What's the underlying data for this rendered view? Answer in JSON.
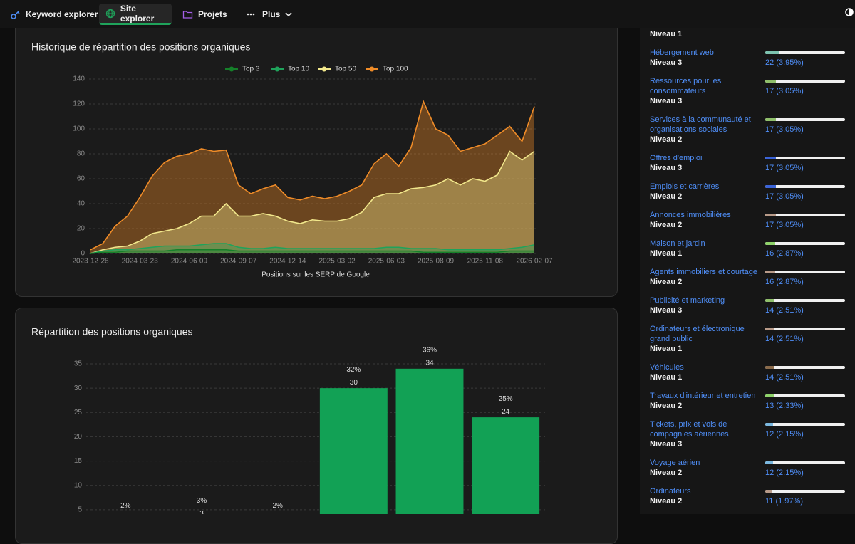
{
  "nav": {
    "items": [
      "Keyword explorer",
      "Site explorer",
      "Projets",
      "Plus"
    ]
  },
  "chart_data": [
    {
      "type": "line",
      "title": "Historique de répartition des positions organiques",
      "x_label": "Positions sur les SERP de Google",
      "categories": [
        "2023-12-28",
        null,
        null,
        null,
        "2024-03-23",
        null,
        null,
        null,
        "2024-06-09",
        null,
        null,
        null,
        "2024-09-07",
        null,
        null,
        null,
        "2024-12-14",
        null,
        null,
        null,
        "2025-03-02",
        null,
        null,
        null,
        "2025-06-03",
        null,
        null,
        null,
        "2025-08-09",
        null,
        null,
        null,
        "2025-11-08",
        null,
        null,
        null,
        "2026-02-07"
      ],
      "series": [
        {
          "name": "Top 3",
          "color": "#15802a",
          "values": [
            0,
            1,
            1,
            2,
            2,
            2,
            2,
            3,
            3,
            3,
            3,
            3,
            2,
            2,
            2,
            2,
            2,
            2,
            2,
            2,
            2,
            2,
            2,
            2,
            2,
            2,
            2,
            1,
            1,
            1,
            1,
            1,
            1,
            1,
            2,
            2,
            2
          ]
        },
        {
          "name": "Top 10",
          "color": "#1fa35b",
          "values": [
            0,
            2,
            3,
            3,
            4,
            5,
            6,
            6,
            6,
            7,
            8,
            8,
            5,
            4,
            4,
            5,
            4,
            4,
            4,
            4,
            4,
            4,
            4,
            4,
            5,
            5,
            4,
            4,
            4,
            3,
            3,
            3,
            3,
            3,
            4,
            5,
            7
          ]
        },
        {
          "name": "Top 50",
          "color": "#f2e88c",
          "values": [
            0,
            3,
            5,
            6,
            10,
            16,
            18,
            20,
            24,
            30,
            30,
            40,
            30,
            30,
            32,
            30,
            26,
            24,
            27,
            26,
            26,
            28,
            33,
            45,
            48,
            48,
            52,
            53,
            55,
            60,
            55,
            60,
            58,
            63,
            82,
            75,
            82
          ]
        },
        {
          "name": "Top 100",
          "color": "#f08c28",
          "values": [
            3,
            8,
            22,
            30,
            45,
            62,
            73,
            78,
            80,
            84,
            82,
            83,
            55,
            48,
            52,
            55,
            45,
            43,
            46,
            44,
            46,
            50,
            55,
            72,
            80,
            70,
            85,
            122,
            100,
            95,
            82,
            85,
            88,
            95,
            102,
            90,
            118
          ]
        }
      ],
      "ylim": [
        0,
        140
      ],
      "yticks": [
        0,
        20,
        40,
        60,
        80,
        100,
        120,
        140
      ],
      "grid": true,
      "area": true,
      "legend": "top"
    },
    {
      "type": "bar",
      "title": "Répartition des positions organiques",
      "categories": [
        null,
        null,
        null,
        null,
        null,
        null
      ],
      "values": [
        2,
        3,
        2,
        30,
        34,
        24
      ],
      "percent_labels": [
        "2%",
        "3%",
        "2%",
        "32%",
        "36%",
        "25%"
      ],
      "color": "#12a155",
      "ylim": [
        0,
        35
      ],
      "yticks": [
        0,
        5,
        10,
        15,
        20,
        25,
        30,
        35
      ],
      "grid": true
    }
  ],
  "sidebar": {
    "items": [
      {
        "level": "Niveau 1"
      },
      {
        "label": "Hébergement web",
        "level": "Niveau 3",
        "count": 22,
        "count_label": "22 (3.95%)",
        "color": "#7cc4b0"
      },
      {
        "label": "Ressources pour les consommateurs",
        "level": "Niveau 3",
        "count": 17,
        "count_label": "17 (3.05%)",
        "color": "#8fbf6a"
      },
      {
        "label": "Services à la communauté et organisations sociales",
        "level": "Niveau 2",
        "count": 17,
        "count_label": "17 (3.05%)",
        "color": "#8fbf6a"
      },
      {
        "label": "Offres d'emploi",
        "level": "Niveau 3",
        "count": 17,
        "count_label": "17 (3.05%)",
        "color": "#3a63d8"
      },
      {
        "label": "Emplois et carrières",
        "level": "Niveau 2",
        "count": 17,
        "count_label": "17 (3.05%)",
        "color": "#3a63d8"
      },
      {
        "label": "Annonces immobilières",
        "level": "Niveau 2",
        "count": 17,
        "count_label": "17 (3.05%)",
        "color": "#b89a88"
      },
      {
        "label": "Maison et jardin",
        "level": "Niveau 1",
        "count": 16,
        "count_label": "16 (2.87%)",
        "color": "#8fd36a"
      },
      {
        "label": "Agents immobiliers et courtage",
        "level": "Niveau 2",
        "count": 16,
        "count_label": "16 (2.87%)",
        "color": "#b89a88"
      },
      {
        "label": "Publicité et marketing",
        "level": "Niveau 3",
        "count": 14,
        "count_label": "14 (2.51%)",
        "color": "#8fbf6a"
      },
      {
        "label": "Ordinateurs et électronique grand public",
        "level": "Niveau 1",
        "count": 14,
        "count_label": "14 (2.51%)",
        "color": "#b89a88"
      },
      {
        "label": "Véhicules",
        "level": "Niveau 1",
        "count": 14,
        "count_label": "14 (2.51%)",
        "color": "#8a6a4a"
      },
      {
        "label": "Travaux d'intérieur et entretien",
        "level": "Niveau 2",
        "count": 13,
        "count_label": "13 (2.33%)",
        "color": "#8fd36a"
      },
      {
        "label": "Tickets, prix et vols de compagnies aériennes",
        "level": "Niveau 3",
        "count": 12,
        "count_label": "12 (2.15%)",
        "color": "#7ab8e0"
      },
      {
        "label": "Voyage aérien",
        "level": "Niveau 2",
        "count": 12,
        "count_label": "12 (2.15%)",
        "color": "#7ab8e0"
      },
      {
        "label": "Ordinateurs",
        "level": "Niveau 2",
        "count": 11,
        "count_label": "11 (1.97%)",
        "color": "#b89a88"
      }
    ]
  }
}
